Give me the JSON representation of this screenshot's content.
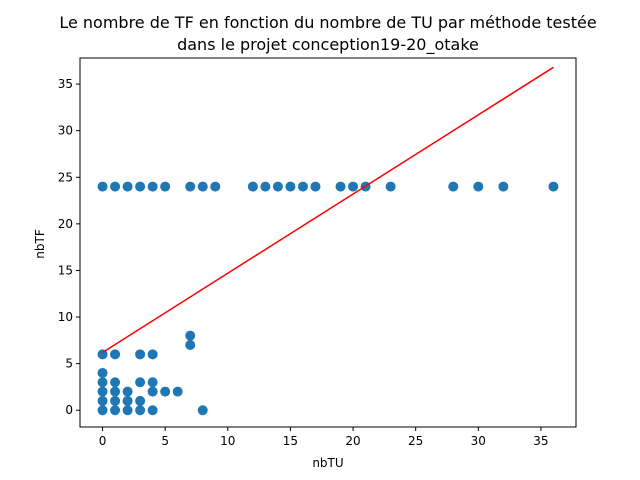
{
  "chart_data": {
    "type": "scatter",
    "title": [
      "Le nombre de TF en fonction du nombre de TU par méthode testée",
      "dans le projet conception19-20_otake"
    ],
    "xlabel": "nbTU",
    "ylabel": "nbTF",
    "xlim": [
      -1.8,
      37.8
    ],
    "ylim": [
      -1.8,
      37.8
    ],
    "xticks": [
      0,
      5,
      10,
      15,
      20,
      25,
      30,
      35
    ],
    "yticks": [
      0,
      5,
      10,
      15,
      20,
      25,
      30,
      35
    ],
    "grid": false,
    "colors": {
      "points": "#1f77b4",
      "fit_line": "#ff0000"
    },
    "series": [
      {
        "kind": "scatter",
        "points": [
          [
            0,
            24
          ],
          [
            1,
            24
          ],
          [
            2,
            24
          ],
          [
            3,
            24
          ],
          [
            4,
            24
          ],
          [
            5,
            24
          ],
          [
            7,
            24
          ],
          [
            8,
            24
          ],
          [
            9,
            24
          ],
          [
            12,
            24
          ],
          [
            13,
            24
          ],
          [
            14,
            24
          ],
          [
            15,
            24
          ],
          [
            16,
            24
          ],
          [
            17,
            24
          ],
          [
            19,
            24
          ],
          [
            20,
            24
          ],
          [
            21,
            24
          ],
          [
            23,
            24
          ],
          [
            28,
            24
          ],
          [
            30,
            24
          ],
          [
            32,
            24
          ],
          [
            36,
            24
          ],
          [
            0,
            6
          ],
          [
            1,
            6
          ],
          [
            3,
            6
          ],
          [
            4,
            6
          ],
          [
            7,
            8
          ],
          [
            7,
            7
          ],
          [
            0,
            4
          ],
          [
            0,
            3
          ],
          [
            1,
            3
          ],
          [
            3,
            3
          ],
          [
            4,
            3
          ],
          [
            0,
            2
          ],
          [
            1,
            2
          ],
          [
            2,
            2
          ],
          [
            4,
            2
          ],
          [
            5,
            2
          ],
          [
            6,
            2
          ],
          [
            0,
            1
          ],
          [
            1,
            1
          ],
          [
            2,
            1
          ],
          [
            3,
            1
          ],
          [
            0,
            0
          ],
          [
            1,
            0
          ],
          [
            2,
            0
          ],
          [
            3,
            0
          ],
          [
            4,
            0
          ],
          [
            8,
            0
          ]
        ]
      },
      {
        "kind": "line",
        "x": [
          0,
          36
        ],
        "y": [
          6.2,
          36.8
        ]
      }
    ]
  }
}
